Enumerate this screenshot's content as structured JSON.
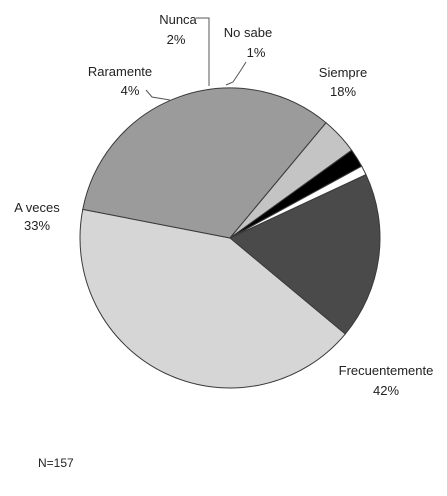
{
  "chart_data": {
    "type": "pie",
    "slices": [
      {
        "label": "Siempre",
        "value": 18,
        "value_label": "18%",
        "color": "#4a4a4a"
      },
      {
        "label": "Frecuentemente",
        "value": 42,
        "value_label": "42%",
        "color": "#d6d6d6"
      },
      {
        "label": "A veces",
        "value": 33,
        "value_label": "33%",
        "color": "#9b9b9b"
      },
      {
        "label": "Raramente",
        "value": 4,
        "value_label": "4%",
        "color": "#c4c4c4"
      },
      {
        "label": "Nunca",
        "value": 2,
        "value_label": "2%",
        "color": "#000000"
      },
      {
        "label": "No sabe",
        "value": 1,
        "value_label": "1%",
        "color": "#ffffff"
      }
    ],
    "note": "N=157",
    "legend": "none"
  }
}
